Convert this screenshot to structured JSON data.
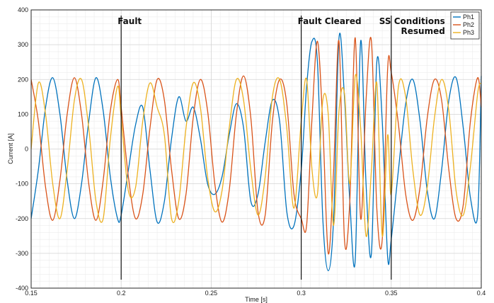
{
  "chart_data": {
    "type": "line",
    "title": "",
    "xlabel": "Time [s]",
    "ylabel": "Current [A]",
    "xlim": [
      0.15,
      0.4
    ],
    "ylim": [
      -400,
      400
    ],
    "xticks": [
      0.15,
      0.2,
      0.25,
      0.3,
      0.35,
      0.4
    ],
    "xtick_labels": [
      "0.15",
      "0.2",
      "0.25",
      "0.3",
      "0.35",
      "0.4"
    ],
    "yticks": [
      -400,
      -300,
      -200,
      -100,
      0,
      100,
      200,
      300,
      400
    ],
    "ytick_labels": [
      "-400",
      "-300",
      "-200",
      "-100",
      "0",
      "100",
      "200",
      "300",
      "400"
    ],
    "grid": true,
    "legend_position": "top-right",
    "series": [
      {
        "name": "Ph1",
        "color": "#0072BD",
        "x": [
          0.15,
          0.154,
          0.158,
          0.162,
          0.166,
          0.17,
          0.174,
          0.178,
          0.182,
          0.186,
          0.19,
          0.194,
          0.198,
          0.2,
          0.204,
          0.208,
          0.212,
          0.216,
          0.22,
          0.224,
          0.228,
          0.232,
          0.236,
          0.24,
          0.244,
          0.248,
          0.252,
          0.256,
          0.26,
          0.264,
          0.268,
          0.272,
          0.276,
          0.28,
          0.284,
          0.288,
          0.292,
          0.296,
          0.3,
          0.303,
          0.306,
          0.309,
          0.312,
          0.315,
          0.318,
          0.321,
          0.324,
          0.327,
          0.33,
          0.333,
          0.336,
          0.339,
          0.342,
          0.345,
          0.348,
          0.35,
          0.354,
          0.358,
          0.362,
          0.366,
          0.37,
          0.374,
          0.378,
          0.382,
          0.386,
          0.39,
          0.394,
          0.398,
          0.4
        ],
        "y": [
          -200,
          -60,
          120,
          205,
          100,
          -90,
          -200,
          -100,
          80,
          205,
          110,
          -80,
          -200,
          -190,
          -60,
          70,
          120,
          -60,
          -210,
          -150,
          30,
          150,
          80,
          120,
          30,
          -100,
          -130,
          -80,
          40,
          130,
          60,
          -150,
          -130,
          20,
          140,
          80,
          -180,
          -220,
          -60,
          180,
          310,
          250,
          -200,
          -350,
          -200,
          320,
          150,
          -150,
          -320,
          310,
          -100,
          -300,
          250,
          80,
          -310,
          -260,
          -60,
          130,
          200,
          80,
          -120,
          -200,
          -60,
          140,
          205,
          60,
          -140,
          -190,
          210
        ]
      },
      {
        "name": "Ph2",
        "color": "#D95319",
        "x": [
          0.15,
          0.154,
          0.158,
          0.162,
          0.166,
          0.17,
          0.174,
          0.178,
          0.182,
          0.186,
          0.19,
          0.194,
          0.198,
          0.2,
          0.204,
          0.208,
          0.212,
          0.216,
          0.22,
          0.224,
          0.228,
          0.232,
          0.236,
          0.24,
          0.244,
          0.248,
          0.252,
          0.256,
          0.26,
          0.264,
          0.268,
          0.272,
          0.276,
          0.28,
          0.284,
          0.288,
          0.292,
          0.296,
          0.3,
          0.303,
          0.306,
          0.309,
          0.312,
          0.315,
          0.318,
          0.321,
          0.324,
          0.327,
          0.33,
          0.333,
          0.336,
          0.339,
          0.342,
          0.345,
          0.348,
          0.35,
          0.354,
          0.358,
          0.362,
          0.366,
          0.37,
          0.374,
          0.378,
          0.382,
          0.386,
          0.39,
          0.394,
          0.398,
          0.4
        ],
        "y": [
          200,
          80,
          -110,
          -205,
          -90,
          100,
          205,
          100,
          -100,
          -205,
          -90,
          110,
          200,
          120,
          -80,
          -200,
          -130,
          60,
          200,
          140,
          -60,
          -200,
          -130,
          90,
          200,
          110,
          -100,
          -210,
          -120,
          100,
          210,
          90,
          -180,
          -190,
          80,
          200,
          130,
          -130,
          -200,
          -220,
          90,
          310,
          70,
          -300,
          -60,
          310,
          -260,
          -150,
          320,
          -200,
          140,
          310,
          -170,
          -260,
          230,
          220,
          70,
          -130,
          -205,
          -110,
          90,
          200,
          140,
          -60,
          -200,
          -160,
          80,
          205,
          120
        ]
      },
      {
        "name": "Ph3",
        "color": "#EDB120",
        "x": [
          0.15,
          0.154,
          0.158,
          0.162,
          0.166,
          0.17,
          0.174,
          0.178,
          0.182,
          0.186,
          0.19,
          0.194,
          0.198,
          0.2,
          0.204,
          0.208,
          0.212,
          0.216,
          0.22,
          0.224,
          0.228,
          0.232,
          0.236,
          0.24,
          0.244,
          0.248,
          0.252,
          0.256,
          0.26,
          0.264,
          0.268,
          0.272,
          0.276,
          0.28,
          0.284,
          0.288,
          0.292,
          0.296,
          0.3,
          0.303,
          0.306,
          0.309,
          0.312,
          0.315,
          0.318,
          0.321,
          0.324,
          0.327,
          0.33,
          0.333,
          0.336,
          0.339,
          0.342,
          0.345,
          0.348,
          0.35,
          0.354,
          0.358,
          0.362,
          0.366,
          0.37,
          0.374,
          0.378,
          0.382,
          0.386,
          0.39,
          0.394,
          0.398,
          0.4
        ],
        "y": [
          0,
          190,
          100,
          -100,
          -200,
          -60,
          140,
          200,
          60,
          -150,
          -200,
          30,
          180,
          90,
          -120,
          -110,
          80,
          190,
          120,
          40,
          -200,
          -150,
          60,
          190,
          120,
          -80,
          -180,
          -120,
          60,
          200,
          140,
          -60,
          -190,
          -80,
          150,
          200,
          60,
          -170,
          80,
          200,
          -60,
          -130,
          140,
          100,
          -220,
          110,
          160,
          -100,
          210,
          60,
          -250,
          -60,
          190,
          -250,
          40,
          -130,
          180,
          150,
          -60,
          -190,
          -110,
          90,
          200,
          110,
          -120,
          -190,
          -50,
          160,
          190
        ]
      }
    ],
    "annotations": [
      {
        "text": "Fault",
        "x": 0.2
      },
      {
        "text": "Fault Cleared",
        "x": 0.3
      },
      {
        "text": "SS Conditions",
        "x": 0.35
      },
      {
        "text": "Resumed",
        "x": 0.35
      }
    ]
  }
}
